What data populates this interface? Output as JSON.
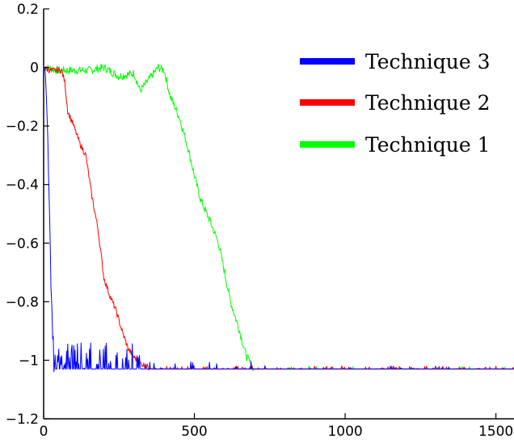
{
  "chart_data": {
    "type": "line",
    "title": "",
    "xlabel": "",
    "ylabel": "",
    "xlim": [
      0,
      1560
    ],
    "ylim": [
      -1.2,
      0.2
    ],
    "x_ticks": [
      0,
      500,
      1000,
      1500
    ],
    "x_tick_labels": [
      "0",
      "500",
      "1000",
      "1500"
    ],
    "y_ticks": [
      0.2,
      0,
      -0.2,
      -0.4,
      -0.6,
      -0.8,
      -1,
      -1.2
    ],
    "y_tick_labels": [
      "0.2",
      "0",
      "−0.2",
      "−0.4",
      "−0.6",
      "−0.8",
      "−1",
      "−1.2"
    ],
    "grid": false,
    "legend_position": "top-right",
    "series": [
      {
        "name": "Technique 3",
        "color": "#0000ff",
        "x": [
          0,
          5,
          10,
          15,
          20,
          25,
          30,
          35,
          40,
          45,
          50,
          60,
          80,
          100,
          120,
          140,
          160,
          180,
          200,
          220,
          240,
          260,
          280,
          300,
          350,
          400,
          450,
          500,
          550,
          600,
          650,
          700,
          800,
          900,
          1000,
          1100,
          1200,
          1400,
          1560
        ],
        "y": [
          0,
          -0.03,
          -0.15,
          -0.3,
          -0.55,
          -0.75,
          -0.9,
          -1.03,
          -0.99,
          -1.03,
          -1.0,
          -1.02,
          -0.97,
          -1.01,
          -0.93,
          -1.02,
          -0.95,
          -1.01,
          -0.96,
          -1.02,
          -0.98,
          -1.02,
          -1.0,
          -1.03,
          -1.01,
          -1.03,
          -1.02,
          -1.03,
          -1.02,
          -1.03,
          -1.03,
          -1.03,
          -1.03,
          -1.03,
          -1.03,
          -1.03,
          -1.03,
          -1.03,
          -1.03
        ]
      },
      {
        "name": "Technique 2",
        "color": "#ff0000",
        "x": [
          0,
          20,
          40,
          60,
          70,
          80,
          100,
          120,
          140,
          160,
          180,
          200,
          220,
          240,
          260,
          280,
          300,
          320,
          340,
          360,
          400,
          500,
          600,
          700,
          800,
          1000,
          1200,
          1560
        ],
        "y": [
          0,
          -0.01,
          -0.01,
          -0.01,
          -0.05,
          -0.15,
          -0.2,
          -0.26,
          -0.3,
          -0.44,
          -0.55,
          -0.72,
          -0.78,
          -0.83,
          -0.9,
          -0.96,
          -0.99,
          -1.01,
          -1.02,
          -1.03,
          -1.03,
          -1.03,
          -1.03,
          -1.03,
          -1.03,
          -1.03,
          -1.03,
          -1.03
        ]
      },
      {
        "name": "Technique 1",
        "color": "#00ff00",
        "x": [
          0,
          50,
          100,
          150,
          200,
          250,
          300,
          320,
          350,
          380,
          400,
          420,
          450,
          480,
          500,
          520,
          550,
          580,
          600,
          620,
          650,
          670,
          690,
          700,
          750,
          800,
          1000,
          1200,
          1400,
          1560
        ],
        "y": [
          0,
          -0.01,
          -0.01,
          -0.01,
          0.0,
          -0.03,
          -0.02,
          -0.08,
          -0.04,
          0.0,
          -0.01,
          -0.1,
          -0.17,
          -0.28,
          -0.37,
          -0.45,
          -0.52,
          -0.6,
          -0.7,
          -0.8,
          -0.9,
          -0.98,
          -1.02,
          -1.03,
          -1.03,
          -1.03,
          -1.03,
          -1.03,
          -1.03,
          -1.03
        ]
      }
    ]
  }
}
